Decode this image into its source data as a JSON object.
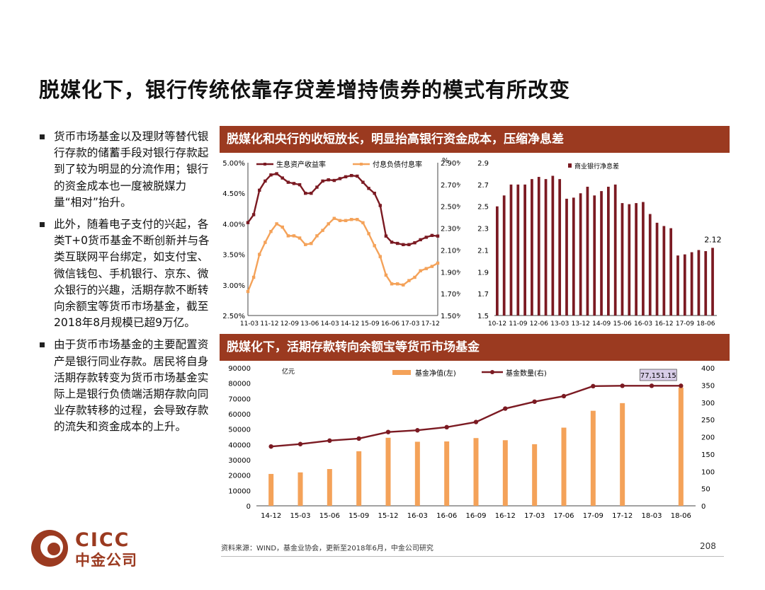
{
  "slide": {
    "title": "脱媒化下，银行传统依靠存贷差增持债券的模式有所改变",
    "bullets": [
      "货币市场基金以及理财等替代银行存款的储蓄手段对银行存款起到了较为明显的分流作用；银行的资金成本也一度被脱媒力量“相对”抬升。",
      "此外，随着电子支付的兴起，各类T+0货币基金不断创新并与各类互联网平台绑定，如支付宝、微信钱包、手机银行、京东、微众银行的兴趣，活期存款不断转向余额宝等货币市场基金，截至2018年8月规模已超9万亿。",
      "由于货币市场基金的主要配置资产是银行同业存款。居民将自身活期存款转变为货币市场基金实际上是银行负债端活期存款向同业存款转移的过程，会导致存款的流失和资金成本的上升。"
    ],
    "banner1": "脱媒化和央行的收短放长，明显抬高银行资金成本，压缩净息差",
    "banner2": "脱媒化下，活期存款转向余额宝等货币市场基金",
    "source": "资料来源：WIND，基金业协会，更新至2018年6月，中金公司研究",
    "page": "208",
    "logo": {
      "en": "CICC",
      "cn": "中金公司"
    },
    "colors": {
      "brand": "#9b3a20",
      "dark_red": "#7b1a22",
      "orange": "#f4a259"
    }
  },
  "chart_data": [
    {
      "type": "line",
      "x_ticks": [
        "11-03",
        "11-12",
        "12-09",
        "13-06",
        "14-03",
        "14-12",
        "15-09",
        "16-06",
        "17-03",
        "17-12"
      ],
      "left_axis": {
        "ticks": [
          "2.50%",
          "3.00%",
          "3.50%",
          "4.00%",
          "4.50%",
          "5.00%"
        ],
        "range": [
          2.5,
          5.0
        ]
      },
      "right_axis": {
        "unit": "%",
        "ticks": [
          "1.50%",
          "1.70%",
          "1.90%",
          "2.10%",
          "2.30%",
          "2.50%",
          "2.70%",
          "2.90%"
        ],
        "range": [
          1.5,
          2.9
        ]
      },
      "series": [
        {
          "name": "生息资产收益率",
          "axis": "left",
          "color": "#7b1a22",
          "values": [
            4.02,
            4.15,
            4.55,
            4.7,
            4.8,
            4.82,
            4.75,
            4.68,
            4.66,
            4.64,
            4.5,
            4.5,
            4.6,
            4.7,
            4.72,
            4.71,
            4.74,
            4.77,
            4.79,
            4.78,
            4.68,
            4.58,
            4.5,
            4.3,
            3.8,
            3.7,
            3.68,
            3.66,
            3.66,
            3.69,
            3.74,
            3.78,
            3.81,
            3.8
          ]
        },
        {
          "name": "付息负债付息率",
          "axis": "right",
          "color": "#f4a259",
          "values": [
            1.72,
            1.85,
            2.06,
            2.17,
            2.27,
            2.34,
            2.31,
            2.23,
            2.23,
            2.21,
            2.15,
            2.16,
            2.23,
            2.28,
            2.34,
            2.39,
            2.37,
            2.37,
            2.38,
            2.38,
            2.35,
            2.25,
            2.14,
            2.04,
            1.87,
            1.79,
            1.79,
            1.78,
            1.82,
            1.85,
            1.91,
            1.93,
            1.95,
            1.98
          ]
        }
      ]
    },
    {
      "type": "bar",
      "x_ticks": [
        "10-12",
        "11-09",
        "12-06",
        "13-03",
        "13-12",
        "14-09",
        "15-06",
        "16-03",
        "16-12",
        "17-09",
        "18-06"
      ],
      "y_ticks": [
        "1.5",
        "1.7",
        "1.9",
        "2.1",
        "2.3",
        "2.5",
        "2.7",
        "2.9"
      ],
      "ylim": [
        1.5,
        2.9
      ],
      "series": [
        {
          "name": "商业银行净息差",
          "color": "#7b1a22",
          "values": [
            2.5,
            2.6,
            2.7,
            2.7,
            2.7,
            2.75,
            2.77,
            2.75,
            2.78,
            2.75,
            2.57,
            2.58,
            2.62,
            2.68,
            2.6,
            2.64,
            2.68,
            2.7,
            2.53,
            2.52,
            2.53,
            2.54,
            2.43,
            2.35,
            2.32,
            2.3,
            2.05,
            2.06,
            2.08,
            2.1,
            2.09,
            2.12
          ]
        }
      ],
      "annotation": "2.12"
    },
    {
      "type": "bar",
      "categories": [
        "14-12",
        "15-03",
        "15-06",
        "15-09",
        "15-12",
        "16-03",
        "16-06",
        "16-09",
        "16-12",
        "17-03",
        "17-06",
        "17-09",
        "17-12",
        "18-03",
        "18-06"
      ],
      "left_axis": {
        "unit": "亿元",
        "ticks": [
          "0",
          "10000",
          "20000",
          "30000",
          "40000",
          "50000",
          "60000",
          "70000",
          "80000",
          "90000"
        ],
        "range": [
          0,
          90000
        ]
      },
      "right_axis": {
        "ticks": [
          "0",
          "50",
          "100",
          "150",
          "200",
          "250",
          "300",
          "350",
          "400"
        ],
        "range": [
          0,
          400
        ]
      },
      "series": [
        {
          "name": "基金净值(左)",
          "type": "bar",
          "axis": "left",
          "color": "#f4a259",
          "values": [
            20800,
            21800,
            24000,
            35600,
            44400,
            41800,
            42000,
            44200,
            42800,
            40200,
            51000,
            62000,
            67000,
            null,
            77151.15
          ]
        },
        {
          "name": "基金数量(右)",
          "type": "line",
          "axis": "right",
          "color": "#7b1a22",
          "values": [
            172,
            179,
            189,
            195,
            214,
            219,
            228,
            243,
            282,
            302,
            318,
            347,
            348,
            348,
            348
          ]
        }
      ],
      "annotation": "77,151.15"
    }
  ]
}
